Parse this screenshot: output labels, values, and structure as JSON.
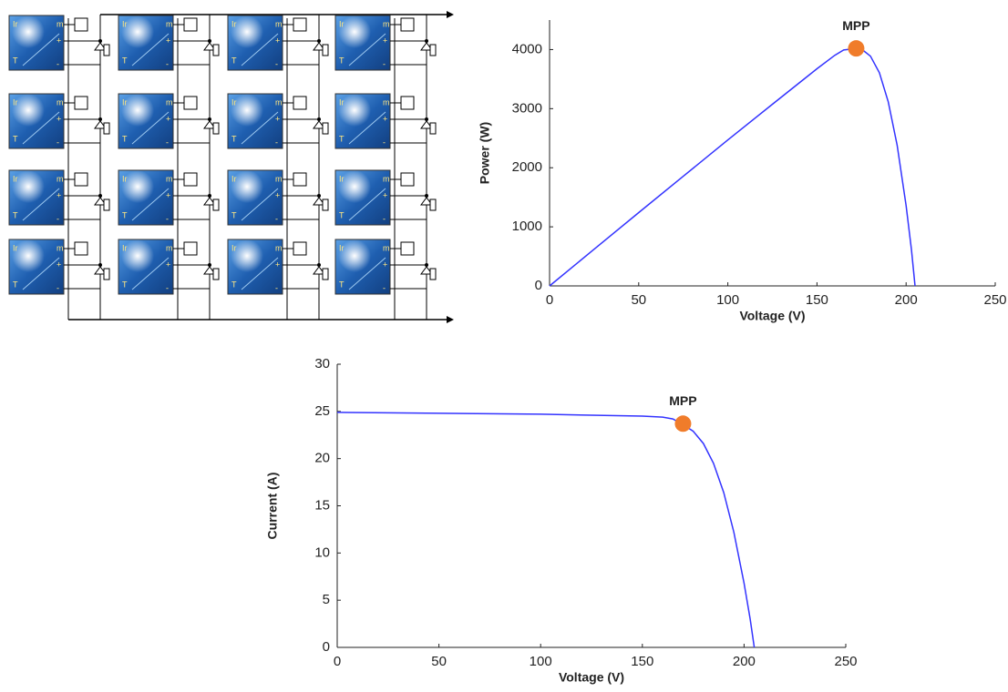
{
  "diagram": {
    "port_labels": [
      "Ir",
      "m",
      "+",
      "T",
      "-"
    ]
  },
  "chart_data": [
    {
      "type": "line",
      "x_label": "Voltage (V)",
      "y_label": "Power (W)",
      "annotation": "MPP",
      "color": "#3333ff",
      "mpp_color": "#f07c2a",
      "x": [
        0,
        25,
        50,
        75,
        100,
        125,
        150,
        160,
        165,
        170,
        175,
        180,
        185,
        190,
        195,
        200,
        203,
        205
      ],
      "values": [
        0,
        621,
        1240,
        1856,
        2470,
        3075,
        3675,
        3904,
        3993,
        4012,
        4008,
        3888,
        3608,
        3116,
        2379,
        1360,
        609,
        0
      ],
      "mpp": {
        "x": 172,
        "y": 4020
      },
      "xlim": [
        0,
        250
      ],
      "ylim": [
        0,
        4500
      ],
      "xticks": [
        0,
        50,
        100,
        150,
        200,
        250
      ],
      "yticks": [
        0,
        1000,
        2000,
        3000,
        4000
      ]
    },
    {
      "type": "line",
      "x_label": "Voltage (V)",
      "y_label": "Current (A)",
      "annotation": "MPP",
      "color": "#3333ff",
      "mpp_color": "#f07c2a",
      "x": [
        0,
        25,
        50,
        75,
        100,
        125,
        150,
        160,
        165,
        170,
        175,
        180,
        185,
        190,
        195,
        200,
        203,
        205
      ],
      "values": [
        24.9,
        24.85,
        24.8,
        24.75,
        24.7,
        24.6,
        24.5,
        24.4,
        24.2,
        23.6,
        22.9,
        21.6,
        19.5,
        16.4,
        12.2,
        6.8,
        3.0,
        0
      ],
      "mpp": {
        "x": 170,
        "y": 23.7
      },
      "xlim": [
        0,
        250
      ],
      "ylim": [
        0,
        30
      ],
      "xticks": [
        0,
        50,
        100,
        150,
        200,
        250
      ],
      "yticks": [
        0,
        5,
        10,
        15,
        20,
        25,
        30
      ]
    }
  ]
}
